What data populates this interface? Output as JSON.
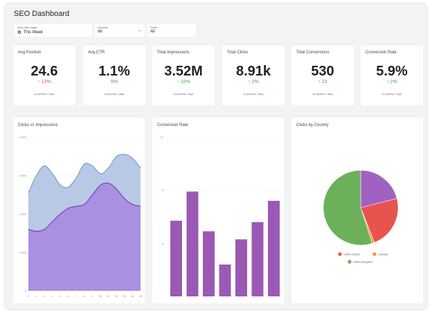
{
  "page": {
    "title": "SEO Dashboard"
  },
  "filters": [
    {
      "label": "Auto date range",
      "value": "This Week",
      "icon": "calendar-icon"
    },
    {
      "label": "Services",
      "value": "All",
      "icon": "chevron-down-icon"
    },
    {
      "label": "Posts",
      "value": "All"
    }
  ],
  "kpis": [
    {
      "name": "Avg Position",
      "value": "24.6",
      "delta": "↑ 13%",
      "trend": "down",
      "note": "vs previous 7 days"
    },
    {
      "name": "Avg CTR",
      "value": "1.1%",
      "delta": "8%",
      "trend": "neutral",
      "note": "vs previous 7 days"
    },
    {
      "name": "Total Impressions",
      "value": "3.52M",
      "delta": "↑ 10%",
      "trend": "up",
      "note": "vs previous 7 days"
    },
    {
      "name": "Total Clicks",
      "value": "8.91k",
      "delta": "↑ 2%",
      "trend": "up",
      "note": "vs previous 7 days"
    },
    {
      "name": "Total Conversions",
      "value": "530",
      "delta": "↑ 23",
      "trend": "up",
      "note": "vs previous 7 days"
    },
    {
      "name": "Conversion Rate",
      "value": "5.9%",
      "delta": "↑ 2%",
      "trend": "up",
      "note": "vs previous 7 days"
    }
  ],
  "colors": {
    "impressions_fill": "#b3c6e4",
    "impressions_line": "#7b9cd0",
    "clicks_fill": "#a98ae0",
    "clicks_line": "#7a3fbf",
    "bar": "#9b59b6",
    "pie_uk": "#6db05a",
    "pie_us": "#e8534f",
    "pie_canada": "#f39a2b",
    "pie_other": "#a062c0"
  },
  "chart_data": [
    {
      "type": "area",
      "title": "Clicks vs Impressions",
      "x": [
        1,
        2,
        3,
        4,
        5,
        6,
        7,
        8,
        9,
        10,
        11,
        12,
        13,
        14,
        15
      ],
      "yticks": [
        "4,000",
        "3,000",
        "2,000",
        "1,000",
        "0"
      ],
      "ylim": [
        0,
        4000
      ],
      "series": [
        {
          "values": [
            2550,
            3000,
            3250,
            3050,
            2750,
            2700,
            2950,
            3300,
            3250,
            3050,
            3200,
            3500,
            3550,
            3450,
            3200
          ]
        },
        {
          "values": [
            1600,
            1550,
            1600,
            1800,
            2000,
            2150,
            2200,
            2250,
            2500,
            2750,
            2800,
            2650,
            2400,
            2250,
            2200
          ]
        }
      ]
    },
    {
      "type": "bar",
      "title": "Conversion Rate",
      "yticks": [
        "12",
        "8",
        "4"
      ],
      "ylim": [
        0,
        12
      ],
      "values": [
        5.7,
        7.9,
        4.9,
        2.4,
        4.3,
        5.6,
        7.2
      ]
    },
    {
      "type": "pie",
      "title": "Clicks by Country",
      "legend": [
        "United States",
        "Canada",
        "United Kingdom"
      ],
      "slices": [
        {
          "name": "United States",
          "value": 23,
          "color": "#e8534f"
        },
        {
          "name": "Canada",
          "value": 1,
          "color": "#f39a2b"
        },
        {
          "name": "United Kingdom",
          "value": 55,
          "color": "#6db05a"
        },
        {
          "name": "",
          "value": 21,
          "color": "#a062c0"
        }
      ]
    }
  ]
}
